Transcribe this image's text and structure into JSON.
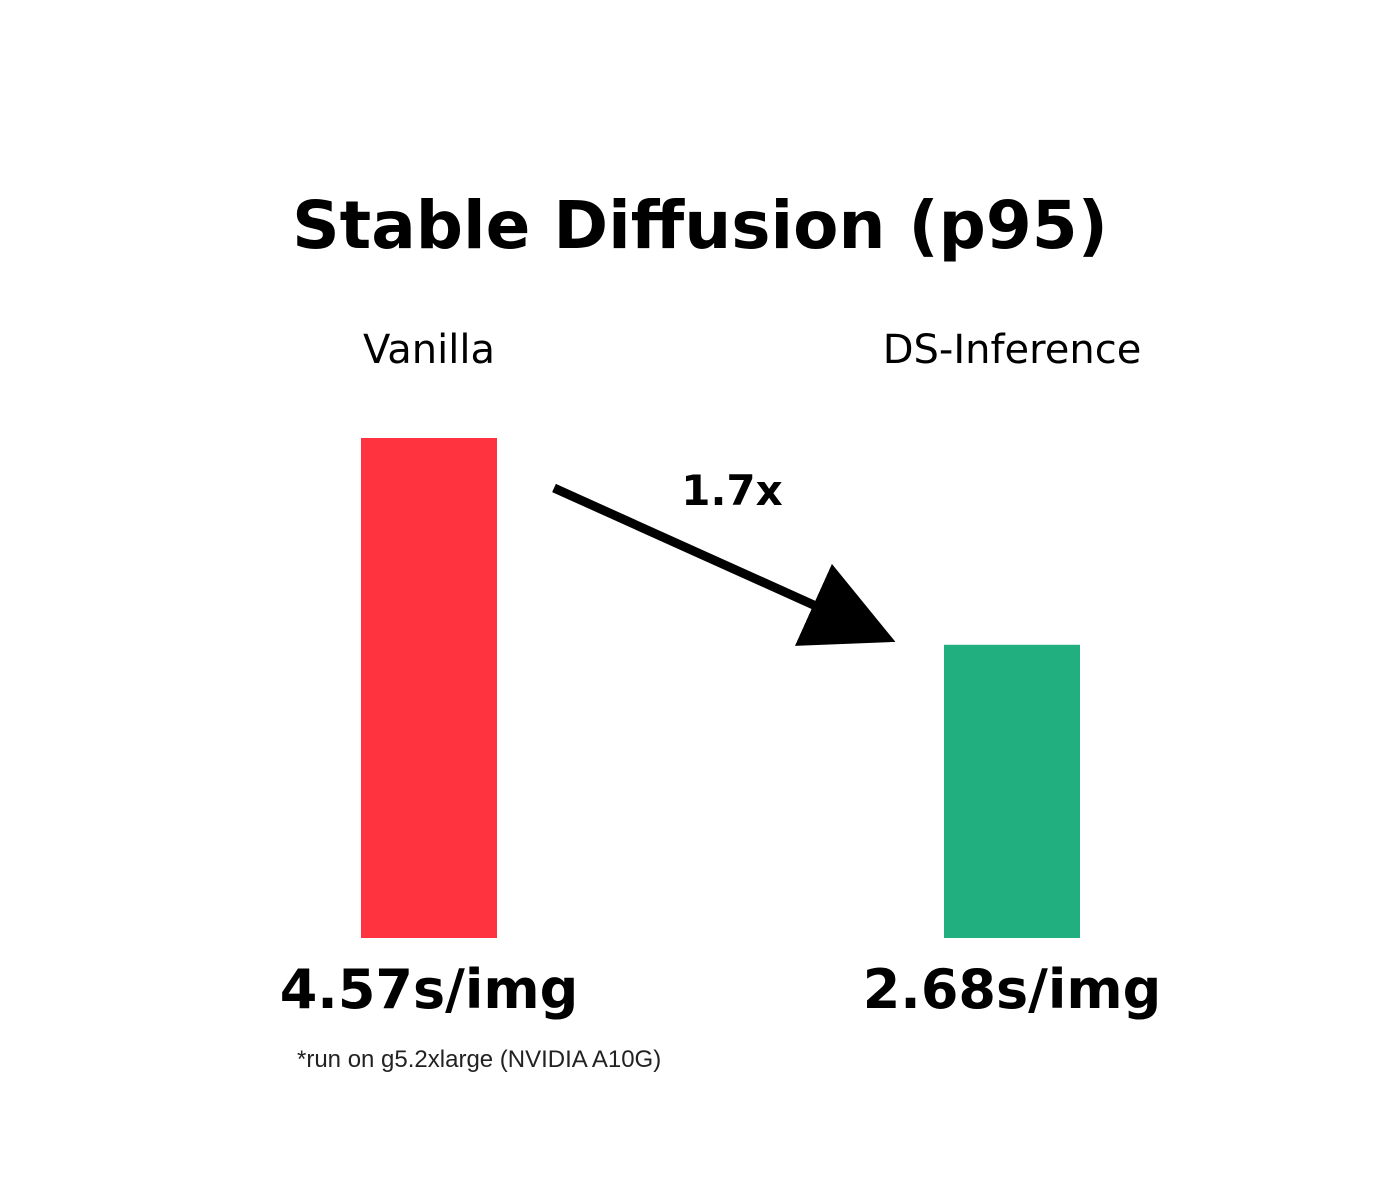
{
  "chart_data": {
    "type": "bar",
    "title": "Stable Diffusion (p95)",
    "categories": [
      "Vanilla",
      "DS-Inference"
    ],
    "values": [
      4.57,
      2.68
    ],
    "value_labels": [
      "4.57s/img",
      "2.68s/img"
    ],
    "colors": [
      "#FF3340",
      "#21AF80"
    ],
    "xlabel": "",
    "ylabel": "",
    "grid": false,
    "legend": "none",
    "annotation": {
      "text": "1.7x"
    },
    "footnote": "*run on g5.2xlarge (NVIDIA A10G)"
  }
}
